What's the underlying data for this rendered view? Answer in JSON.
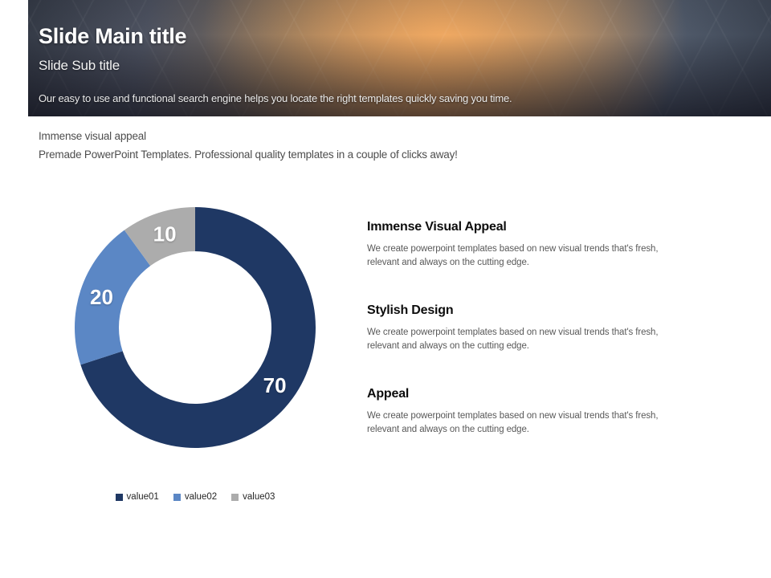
{
  "header": {
    "main_title": "Slide Main title",
    "sub_title": "Slide Sub title",
    "tagline": "Our easy to use and functional search engine helps you locate the right templates quickly saving you time."
  },
  "intro": {
    "line1": "Immense visual appeal",
    "line2": "Premade PowerPoint Templates. Professional quality templates in a couple of clicks away!"
  },
  "chart_data": {
    "type": "pie",
    "subtype": "donut",
    "series_labels": [
      "value01",
      "value02",
      "value03"
    ],
    "values": [
      70,
      20,
      10
    ],
    "colors": [
      "#1F3864",
      "#5B87C5",
      "#ACACAC"
    ],
    "start_angle_deg": 0,
    "direction": "clockwise",
    "data_labels": [
      "70",
      "20",
      "10"
    ],
    "legend_position": "bottom"
  },
  "features": [
    {
      "title": "Immense Visual Appeal",
      "body": "We create powerpoint templates based on new visual trends that's fresh, relevant and always on the cutting edge."
    },
    {
      "title": "Stylish Design",
      "body": "We create powerpoint templates based on new visual trends that's fresh, relevant and always on the cutting edge."
    },
    {
      "title": "Appeal",
      "body": "We create powerpoint templates based on new visual trends that's fresh, relevant and always on the cutting edge."
    }
  ]
}
